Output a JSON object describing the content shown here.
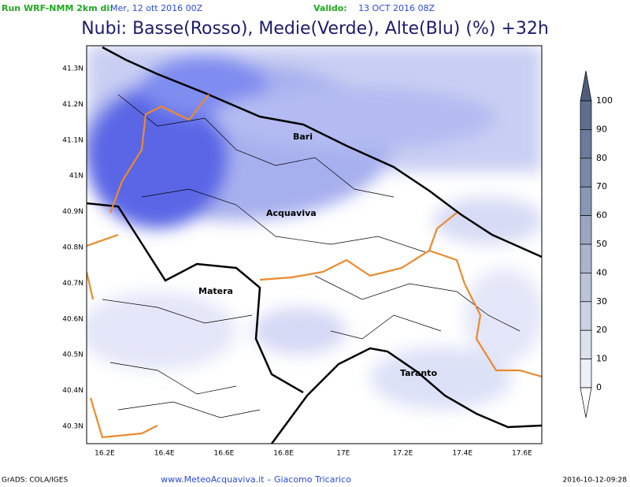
{
  "header": {
    "run_label": "Run WRF-NMM 2km di:",
    "run_date": "Mer, 12 ott 2016 00Z",
    "valid_label": "Valido:",
    "valid_date": "13 OCT 2016 08Z",
    "title": "Nubi: Basse(Rosso), Medie(Verde), Alte(Blu) (%) +32h"
  },
  "map": {
    "lat_labels": [
      "41.3N",
      "41.2N",
      "41.1N",
      "41N",
      "40.9N",
      "40.8N",
      "40.7N",
      "40.6N",
      "40.5N",
      "40.4N",
      "40.3N"
    ],
    "lon_labels": [
      "16.2E",
      "16.4E",
      "16.6E",
      "16.8E",
      "17E",
      "17.2E",
      "17.4E",
      "17.6E"
    ],
    "places": [
      "Bari",
      "Acquaviva",
      "Matera",
      "Taranto"
    ]
  },
  "colorbar": {
    "labels": [
      "100",
      "90",
      "80",
      "70",
      "60",
      "50",
      "40",
      "30",
      "20",
      "10",
      "0"
    ]
  },
  "footer": {
    "left": "GrADS: COLA/IGES",
    "center": "www.MeteoAcquaviva.it – Giacomo Tricarico",
    "right": "2016-10-12-09:28"
  }
}
